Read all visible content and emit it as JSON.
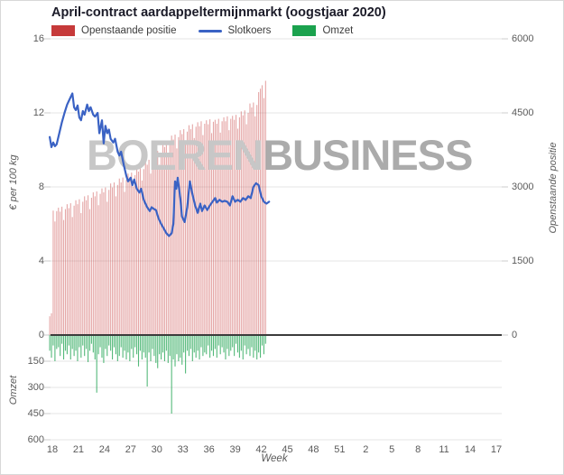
{
  "title": "April-contract aardappeltermijnmarkt (oogstjaar 2020)",
  "legend": [
    {
      "label": "Openstaande positie",
      "color": "#c63a3a",
      "type": "box"
    },
    {
      "label": "Slotkoers",
      "color": "#3a62c4",
      "type": "line"
    },
    {
      "label": "Omzet",
      "color": "#1ba24e",
      "type": "box"
    }
  ],
  "watermark": {
    "part1": "BOEREN",
    "part2": "BUSINESS"
  },
  "colors": {
    "open_interest_bar": "rgba(198,58,58,0.45)",
    "price_line": "#3a62c4",
    "volume_bar": "rgba(27,162,78,0.75)",
    "grid": "#e6e6e6",
    "zero_line": "#3c3c3c",
    "watermark_gray_1": "#c7c7c7",
    "watermark_gray_2": "#ababab"
  },
  "axes": {
    "left_price": {
      "title": "€ per 100 kg",
      "ticks": [
        "16",
        "12",
        "8",
        "4",
        "0"
      ],
      "tick_values": [
        16,
        12,
        8,
        4,
        0
      ]
    },
    "left_omzet": {
      "title": "Omzet",
      "ticks": [
        "150",
        "300",
        "450",
        "600"
      ],
      "tick_values": [
        150,
        300,
        450,
        600
      ]
    },
    "right": {
      "title": "Openstaande positie",
      "ticks": [
        "6000",
        "4500",
        "3000",
        "1500",
        "0"
      ],
      "tick_values": [
        6000,
        4500,
        3000,
        1500,
        0
      ]
    },
    "x": {
      "title": "Week",
      "ticks": [
        "18",
        "21",
        "24",
        "27",
        "30",
        "33",
        "36",
        "39",
        "42",
        "45",
        "48",
        "51",
        "2",
        "5",
        "8",
        "11",
        "14",
        "17"
      ]
    }
  },
  "chart_data": {
    "type": "combo",
    "x_axis": {
      "label": "Week",
      "tick_labels": [
        18,
        21,
        24,
        27,
        30,
        33,
        36,
        39,
        42,
        45,
        48,
        51,
        2,
        5,
        8,
        11,
        14,
        17
      ],
      "weeks_span": 51
    },
    "price_axis": {
      "label": "€ per 100 kg",
      "range": [
        0,
        16
      ]
    },
    "open_interest_axis": {
      "label": "Openstaande positie",
      "range": [
        0,
        6000
      ],
      "side": "right"
    },
    "omzet_axis": {
      "label": "Omzet",
      "range": [
        0,
        600
      ],
      "inverted_below_zero": true
    },
    "series": [
      {
        "name": "Openstaande positie",
        "type": "bar",
        "axis": "open_interest",
        "start_week": 17.7,
        "week_step": 0.2,
        "values": [
          380,
          440,
          2520,
          2300,
          2510,
          2580,
          2500,
          2600,
          2330,
          2550,
          2650,
          2570,
          2670,
          2390,
          2620,
          2730,
          2650,
          2750,
          2470,
          2700,
          2810,
          2730,
          2830,
          2550,
          2780,
          2890,
          2810,
          2910,
          2630,
          2860,
          2970,
          2890,
          2990,
          2700,
          2940,
          3070,
          2990,
          3090,
          2810,
          3040,
          3170,
          3090,
          3190,
          2900,
          3140,
          3270,
          3190,
          3290,
          3010,
          3240,
          3390,
          3310,
          3410,
          3130,
          3360,
          3530,
          3450,
          3550,
          3270,
          3500,
          3710,
          3630,
          3730,
          3450,
          3680,
          3890,
          3810,
          3910,
          3620,
          3860,
          4040,
          3960,
          4060,
          3780,
          4010,
          4150,
          4070,
          4170,
          3890,
          4120,
          4250,
          4170,
          4270,
          3990,
          4220,
          4310,
          4230,
          4330,
          4050,
          4280,
          4350,
          4270,
          4370,
          4090,
          4320,
          4360,
          4280,
          4380,
          4100,
          4330,
          4410,
          4330,
          4430,
          4150,
          4380,
          4440,
          4360,
          4460,
          4180,
          4410,
          4530,
          4450,
          4550,
          4270,
          4500,
          4690,
          4610,
          4710,
          4430,
          4660,
          4920,
          4990,
          5060,
          4800,
          5150
        ]
      },
      {
        "name": "Slotkoers",
        "type": "line",
        "axis": "price",
        "points": [
          [
            17.7,
            10.7
          ],
          [
            17.9,
            10.15
          ],
          [
            18.1,
            10.4
          ],
          [
            18.3,
            10.2
          ],
          [
            18.5,
            10.3
          ],
          [
            18.8,
            10.9
          ],
          [
            19.1,
            11.5
          ],
          [
            19.4,
            12.0
          ],
          [
            19.7,
            12.45
          ],
          [
            20.0,
            12.75
          ],
          [
            20.3,
            13.05
          ],
          [
            20.5,
            12.3
          ],
          [
            20.7,
            12.15
          ],
          [
            20.9,
            12.4
          ],
          [
            21.1,
            11.75
          ],
          [
            21.3,
            11.6
          ],
          [
            21.5,
            12.1
          ],
          [
            21.7,
            11.9
          ],
          [
            22.0,
            12.45
          ],
          [
            22.2,
            12.1
          ],
          [
            22.4,
            12.3
          ],
          [
            22.7,
            11.9
          ],
          [
            22.9,
            11.8
          ],
          [
            23.2,
            12.0
          ],
          [
            23.4,
            10.9
          ],
          [
            23.7,
            11.6
          ],
          [
            23.9,
            10.35
          ],
          [
            24.1,
            11.3
          ],
          [
            24.3,
            10.9
          ],
          [
            24.5,
            11.1
          ],
          [
            24.7,
            10.6
          ],
          [
            25.0,
            10.4
          ],
          [
            25.2,
            10.6
          ],
          [
            25.5,
            9.9
          ],
          [
            25.7,
            9.7
          ],
          [
            25.9,
            9.9
          ],
          [
            26.2,
            9.2
          ],
          [
            26.5,
            8.6
          ],
          [
            26.7,
            8.3
          ],
          [
            27.0,
            8.5
          ],
          [
            27.2,
            8.1
          ],
          [
            27.4,
            8.4
          ],
          [
            27.7,
            7.9
          ],
          [
            28.0,
            7.7
          ],
          [
            28.2,
            7.9
          ],
          [
            28.5,
            7.3
          ],
          [
            28.7,
            7.1
          ],
          [
            28.9,
            6.9
          ],
          [
            29.2,
            6.7
          ],
          [
            29.4,
            6.9
          ],
          [
            29.7,
            6.8
          ],
          [
            29.9,
            6.75
          ],
          [
            30.2,
            6.3
          ],
          [
            30.5,
            6.0
          ],
          [
            30.8,
            5.75
          ],
          [
            31.1,
            5.5
          ],
          [
            31.4,
            5.35
          ],
          [
            31.7,
            5.5
          ],
          [
            31.9,
            6.0
          ],
          [
            32.1,
            8.3
          ],
          [
            32.25,
            7.9
          ],
          [
            32.4,
            8.5
          ],
          [
            32.7,
            7.4
          ],
          [
            32.9,
            6.4
          ],
          [
            33.2,
            6.1
          ],
          [
            33.5,
            6.9
          ],
          [
            33.8,
            8.3
          ],
          [
            34.1,
            7.6
          ],
          [
            34.4,
            7.0
          ],
          [
            34.7,
            6.6
          ],
          [
            35.0,
            7.1
          ],
          [
            35.2,
            6.7
          ],
          [
            35.5,
            7.0
          ],
          [
            35.8,
            6.75
          ],
          [
            36.1,
            7.0
          ],
          [
            36.4,
            7.2
          ],
          [
            36.7,
            7.4
          ],
          [
            36.9,
            7.15
          ],
          [
            37.2,
            7.3
          ],
          [
            37.5,
            7.2
          ],
          [
            37.8,
            7.25
          ],
          [
            38.1,
            7.2
          ],
          [
            38.4,
            7.0
          ],
          [
            38.7,
            7.5
          ],
          [
            39.0,
            7.2
          ],
          [
            39.3,
            7.3
          ],
          [
            39.6,
            7.2
          ],
          [
            39.9,
            7.4
          ],
          [
            40.2,
            7.3
          ],
          [
            40.5,
            7.5
          ],
          [
            40.8,
            7.4
          ],
          [
            41.1,
            8.0
          ],
          [
            41.4,
            8.2
          ],
          [
            41.7,
            8.1
          ],
          [
            42.0,
            7.5
          ],
          [
            42.3,
            7.2
          ],
          [
            42.6,
            7.1
          ],
          [
            42.9,
            7.2
          ]
        ]
      },
      {
        "name": "Omzet",
        "type": "bar",
        "axis": "omzet",
        "start_week": 17.7,
        "week_step": 0.2,
        "values": [
          90,
          130,
          60,
          150,
          80,
          70,
          120,
          50,
          140,
          90,
          110,
          60,
          140,
          80,
          120,
          90,
          150,
          70,
          130,
          60,
          120,
          80,
          155,
          90,
          50,
          100,
          140,
          330,
          110,
          70,
          130,
          160,
          80,
          120,
          60,
          90,
          140,
          70,
          110,
          150,
          120,
          70,
          130,
          90,
          140,
          100,
          150,
          80,
          130,
          70,
          110,
          180,
          90,
          140,
          100,
          130,
          295,
          100,
          150,
          80,
          120,
          160,
          190,
          110,
          140,
          100,
          150,
          90,
          160,
          120,
          450,
          140,
          180,
          110,
          150,
          130,
          170,
          100,
          220,
          90,
          120,
          80,
          150,
          100,
          130,
          90,
          140,
          70,
          120,
          100,
          110,
          60,
          130,
          90,
          120,
          80,
          130,
          60,
          110,
          70,
          100,
          140,
          80,
          120,
          90,
          70,
          120,
          50,
          100,
          130,
          90,
          140,
          60,
          110,
          80,
          120,
          70,
          130,
          90,
          140,
          100,
          130,
          60,
          110,
          50
        ]
      }
    ]
  }
}
